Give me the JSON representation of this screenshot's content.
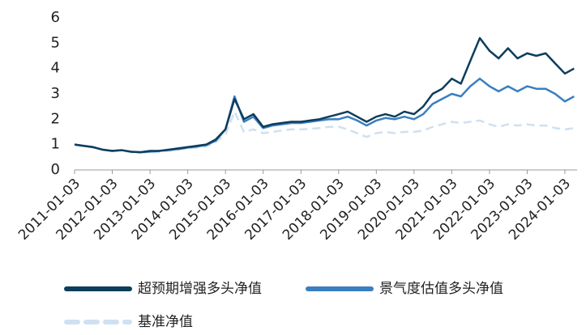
{
  "chart_data": {
    "type": "line",
    "x": [
      "2011-01-03",
      "2011-04-01",
      "2011-07-01",
      "2011-10-01",
      "2012-01-03",
      "2012-04-01",
      "2012-07-01",
      "2012-10-01",
      "2013-01-03",
      "2013-04-01",
      "2013-07-01",
      "2013-10-01",
      "2014-01-03",
      "2014-04-01",
      "2014-07-01",
      "2014-10-01",
      "2015-01-03",
      "2015-04-01",
      "2015-07-01",
      "2015-10-01",
      "2016-01-03",
      "2016-04-01",
      "2016-07-01",
      "2016-10-01",
      "2017-01-03",
      "2017-04-01",
      "2017-07-01",
      "2017-10-01",
      "2018-01-03",
      "2018-04-01",
      "2018-07-01",
      "2018-10-01",
      "2019-01-03",
      "2019-04-01",
      "2019-07-01",
      "2019-10-01",
      "2020-01-03",
      "2020-04-01",
      "2020-07-01",
      "2020-10-01",
      "2021-01-03",
      "2021-04-01",
      "2021-07-01",
      "2021-10-01",
      "2022-01-03",
      "2022-04-01",
      "2022-07-01",
      "2022-10-01",
      "2023-01-03",
      "2023-04-01",
      "2023-07-01",
      "2023-10-01",
      "2024-01-03",
      "2024-04-01"
    ],
    "series": [
      {
        "name": "超预期增强多头净值",
        "color": "#0d3d5c",
        "dash": false,
        "values": [
          1.0,
          0.95,
          0.9,
          0.8,
          0.75,
          0.78,
          0.72,
          0.7,
          0.75,
          0.75,
          0.8,
          0.85,
          0.9,
          0.95,
          1.0,
          1.2,
          1.6,
          2.8,
          2.0,
          2.2,
          1.7,
          1.8,
          1.85,
          1.9,
          1.9,
          1.95,
          2.0,
          2.1,
          2.2,
          2.3,
          2.1,
          1.9,
          2.1,
          2.2,
          2.1,
          2.3,
          2.2,
          2.5,
          3.0,
          3.2,
          3.6,
          3.4,
          4.3,
          5.2,
          4.7,
          4.4,
          4.8,
          4.4,
          4.6,
          4.5,
          4.6,
          4.2,
          3.8,
          4.0
        ]
      },
      {
        "name": "景气度估值多头净值",
        "color": "#3a7fc1",
        "dash": false,
        "values": [
          1.0,
          0.95,
          0.9,
          0.8,
          0.75,
          0.78,
          0.72,
          0.7,
          0.72,
          0.75,
          0.78,
          0.82,
          0.88,
          0.92,
          0.98,
          1.15,
          1.6,
          2.9,
          1.9,
          2.1,
          1.65,
          1.75,
          1.8,
          1.85,
          1.85,
          1.9,
          1.95,
          2.0,
          2.0,
          2.1,
          1.95,
          1.75,
          1.95,
          2.05,
          2.0,
          2.1,
          2.0,
          2.2,
          2.6,
          2.8,
          3.0,
          2.9,
          3.3,
          3.6,
          3.3,
          3.1,
          3.3,
          3.1,
          3.3,
          3.2,
          3.2,
          3.0,
          2.7,
          2.9
        ]
      },
      {
        "name": "基准净值",
        "color": "#cfe0f1",
        "dash": true,
        "values": [
          1.0,
          0.95,
          0.88,
          0.8,
          0.75,
          0.76,
          0.7,
          0.68,
          0.7,
          0.7,
          0.75,
          0.8,
          0.85,
          0.88,
          0.92,
          1.1,
          1.4,
          2.3,
          1.5,
          1.6,
          1.45,
          1.5,
          1.55,
          1.6,
          1.6,
          1.62,
          1.65,
          1.7,
          1.7,
          1.6,
          1.45,
          1.3,
          1.45,
          1.5,
          1.45,
          1.5,
          1.5,
          1.55,
          1.7,
          1.8,
          1.9,
          1.85,
          1.9,
          1.95,
          1.8,
          1.7,
          1.8,
          1.75,
          1.8,
          1.75,
          1.75,
          1.65,
          1.6,
          1.65
        ]
      }
    ],
    "xlim": [
      "2011-01-03",
      "2024-04-30"
    ],
    "xticks": [
      "2011-01-03",
      "2012-01-03",
      "2013-01-03",
      "2014-01-03",
      "2015-01-03",
      "2016-01-03",
      "2017-01-03",
      "2018-01-03",
      "2019-01-03",
      "2020-01-03",
      "2021-01-03",
      "2022-01-03",
      "2023-01-03",
      "2024-01-03"
    ],
    "ylim": [
      0,
      6
    ],
    "yticks": [
      0,
      1,
      2,
      3,
      4,
      5,
      6
    ],
    "grid": false
  }
}
